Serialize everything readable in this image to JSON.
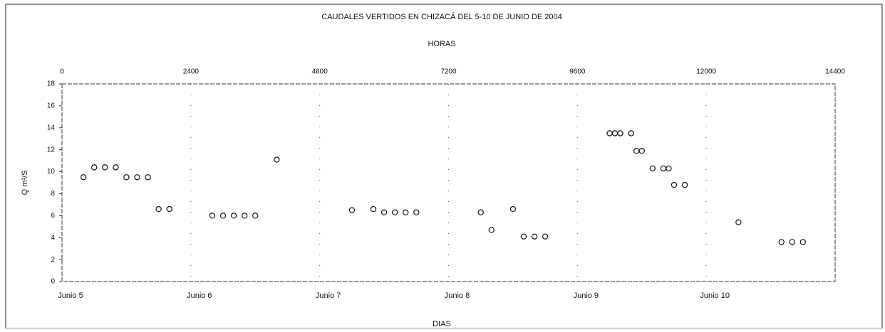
{
  "chart_data": {
    "type": "scatter",
    "title": "CAUDALES VERTIDOS EN CHIZACÁ DEL 5-10 DE JUNIO DE 2004",
    "x_label": "HORAS",
    "x2_label": "DIAS",
    "y_label": "Q m³/S",
    "x": [
      400,
      600,
      800,
      1000,
      1200,
      1400,
      1600,
      1800,
      2000,
      2800,
      3000,
      3200,
      3400,
      3600,
      4000,
      5400,
      5800,
      6000,
      6200,
      6400,
      6600,
      7800,
      8000,
      8400,
      8600,
      8800,
      9000,
      10200,
      10300,
      10400,
      10600,
      10700,
      10800,
      11000,
      11200,
      11300,
      11400,
      11600,
      12600,
      13400,
      13600,
      13800
    ],
    "values": [
      9.5,
      10.4,
      10.4,
      10.4,
      9.5,
      9.5,
      9.5,
      6.6,
      6.6,
      6,
      6,
      6,
      6,
      6,
      11.1,
      6.5,
      6.6,
      6.3,
      6.3,
      6.3,
      6.3,
      6.3,
      4.7,
      6.6,
      4.1,
      4.1,
      4.1,
      13.5,
      13.5,
      13.5,
      13.5,
      11.9,
      11.9,
      10.3,
      10.3,
      10.3,
      8.8,
      8.8,
      5.4,
      3.6,
      3.6,
      3.6
    ],
    "color": "#111111",
    "xlim": [
      0,
      14400
    ],
    "xticks": [
      0,
      2400,
      4800,
      7200,
      9600,
      12000,
      14400
    ],
    "ylim": [
      0,
      18
    ],
    "yticks": [
      0,
      2,
      4,
      6,
      8,
      10,
      12,
      14,
      16,
      18
    ],
    "day_labels": [
      "Junio 5",
      "Junio 6",
      "Junio 7",
      "Junio 8",
      "Junio 9",
      "Junio 10"
    ],
    "grid": true
  }
}
